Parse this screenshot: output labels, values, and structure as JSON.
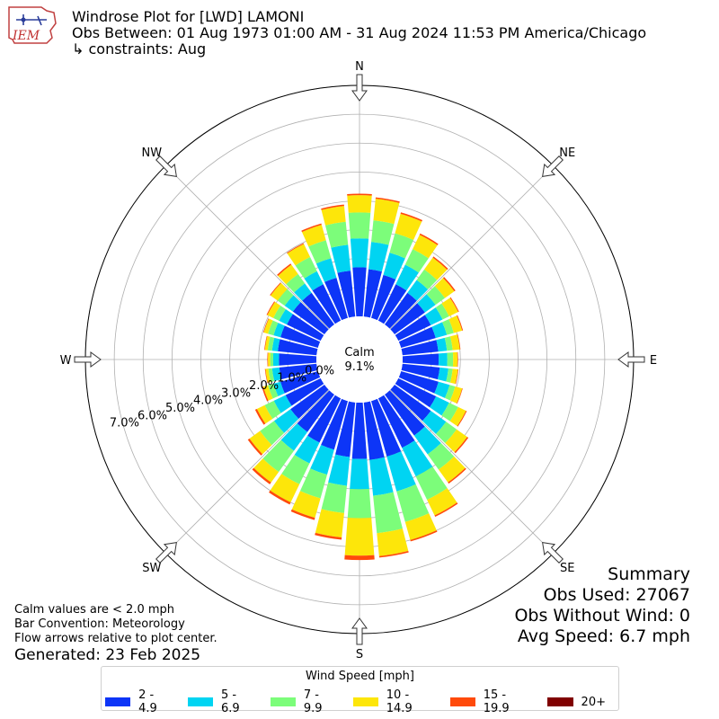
{
  "header": {
    "title": "Windrose Plot for [LWD] LAMONI",
    "subtitle": "Obs Between: 01 Aug 1973 01:00 AM - 31 Aug 2024 11:53 PM America/Chicago",
    "constraints": "↳ constraints: Aug"
  },
  "logo": {
    "text": "IEM"
  },
  "notes": {
    "calm_note": "Calm values are < 2.0 mph",
    "bar_convention": "Bar Convention: Meteorology",
    "flow_arrows": "Flow arrows relative to plot center.",
    "generated": "Generated: 23 Feb 2025"
  },
  "summary": {
    "title": "Summary",
    "obs_used": "Obs Used: 27067",
    "obs_without_wind": "Obs Without Wind: 0",
    "avg_speed": "Avg Speed: 6.7 mph"
  },
  "legend": {
    "title": "Wind Speed [mph]",
    "items": [
      {
        "label": "2 - 4.9",
        "color": "#0d35f7"
      },
      {
        "label": "5 - 6.9",
        "color": "#00d4f2"
      },
      {
        "label": "7 - 9.9",
        "color": "#7cfd7a"
      },
      {
        "label": "10 - 14.9",
        "color": "#fde60a"
      },
      {
        "label": "15 - 19.9",
        "color": "#ff4a0a"
      },
      {
        "label": "20+",
        "color": "#800000"
      }
    ]
  },
  "chart_data": {
    "type": "windrose",
    "calm_label": "Calm",
    "calm_value": "9.1%",
    "calm_percent": 9.1,
    "radial_ticks": [
      "0.0%",
      "1.0%",
      "2.0%",
      "3.0%",
      "4.0%",
      "5.0%",
      "6.0%",
      "7.0%"
    ],
    "radial_max": 8.0,
    "cardinal_labels": [
      {
        "label": "N",
        "direction": 0
      },
      {
        "label": "NE",
        "direction": 45
      },
      {
        "label": "E",
        "direction": 90
      },
      {
        "label": "SE",
        "direction": 135
      },
      {
        "label": "S",
        "direction": 180
      },
      {
        "label": "SW",
        "direction": 225
      },
      {
        "label": "W",
        "direction": 270
      },
      {
        "label": "NW",
        "direction": 315
      }
    ],
    "speed_bins": [
      "2 - 4.9",
      "5 - 6.9",
      "7 - 9.9",
      "10 - 14.9",
      "15 - 19.9",
      "20+"
    ],
    "directions": [
      0,
      10,
      20,
      30,
      40,
      50,
      60,
      70,
      80,
      90,
      100,
      110,
      120,
      130,
      140,
      150,
      160,
      170,
      180,
      190,
      200,
      210,
      220,
      230,
      240,
      250,
      260,
      270,
      280,
      290,
      300,
      310,
      320,
      330,
      340,
      350
    ],
    "cumulative_percent": [
      [
        1.7,
        2.7,
        3.6,
        4.2,
        4.25,
        4.25
      ],
      [
        1.65,
        2.6,
        3.35,
        4.1,
        4.15,
        4.15
      ],
      [
        1.55,
        2.35,
        3.05,
        3.75,
        3.8,
        3.8
      ],
      [
        1.4,
        2.15,
        2.75,
        3.3,
        3.35,
        3.35
      ],
      [
        1.35,
        1.9,
        2.35,
        2.85,
        2.9,
        2.9
      ],
      [
        1.3,
        1.75,
        2.15,
        2.55,
        2.6,
        2.6
      ],
      [
        1.25,
        1.7,
        1.95,
        2.3,
        2.33,
        2.33
      ],
      [
        1.25,
        1.65,
        1.9,
        2.2,
        2.23,
        2.23
      ],
      [
        1.25,
        1.55,
        1.75,
        2.0,
        2.02,
        2.02
      ],
      [
        1.25,
        1.55,
        1.75,
        1.9,
        1.92,
        1.92
      ],
      [
        1.3,
        1.6,
        1.75,
        1.93,
        1.95,
        1.95
      ],
      [
        1.35,
        1.75,
        1.95,
        2.2,
        2.22,
        2.22
      ],
      [
        1.45,
        1.95,
        2.3,
        2.6,
        2.63,
        2.63
      ],
      [
        1.55,
        2.2,
        2.65,
        3.1,
        3.15,
        3.15
      ],
      [
        1.75,
        2.55,
        3.2,
        3.75,
        3.8,
        3.8
      ],
      [
        1.9,
        3.0,
        3.9,
        4.5,
        4.55,
        4.55
      ],
      [
        2.0,
        3.25,
        4.35,
        5.0,
        5.05,
        5.05
      ],
      [
        2.0,
        3.25,
        4.55,
        5.35,
        5.4,
        5.4
      ],
      [
        1.95,
        3.0,
        4.0,
        5.3,
        5.45,
        5.45
      ],
      [
        1.9,
        2.9,
        3.85,
        4.7,
        4.78,
        4.78
      ],
      [
        1.75,
        2.65,
        3.5,
        4.2,
        4.28,
        4.28
      ],
      [
        1.7,
        2.5,
        3.3,
        4.0,
        4.08,
        4.08
      ],
      [
        1.6,
        2.4,
        3.3,
        3.75,
        3.83,
        3.83
      ],
      [
        1.45,
        2.15,
        2.75,
        3.2,
        3.27,
        3.27
      ],
      [
        1.35,
        1.8,
        2.15,
        2.45,
        2.52,
        2.52
      ],
      [
        1.35,
        1.6,
        1.8,
        1.97,
        2.02,
        2.02
      ],
      [
        1.3,
        1.55,
        1.68,
        1.78,
        1.8,
        1.8
      ],
      [
        1.3,
        1.5,
        1.6,
        1.68,
        1.7,
        1.7
      ],
      [
        1.35,
        1.55,
        1.7,
        1.8,
        1.82,
        1.82
      ],
      [
        1.35,
        1.6,
        1.8,
        1.95,
        1.97,
        1.97
      ],
      [
        1.3,
        1.6,
        1.82,
        2.05,
        2.08,
        2.08
      ],
      [
        1.35,
        1.7,
        2.0,
        2.3,
        2.33,
        2.33
      ],
      [
        1.35,
        1.75,
        2.15,
        2.55,
        2.6,
        2.6
      ],
      [
        1.4,
        1.9,
        2.45,
        2.95,
        2.98,
        2.98
      ],
      [
        1.45,
        2.15,
        2.8,
        3.35,
        3.4,
        3.4
      ],
      [
        1.6,
        2.5,
        3.3,
        3.85,
        3.9,
        3.9
      ]
    ]
  }
}
